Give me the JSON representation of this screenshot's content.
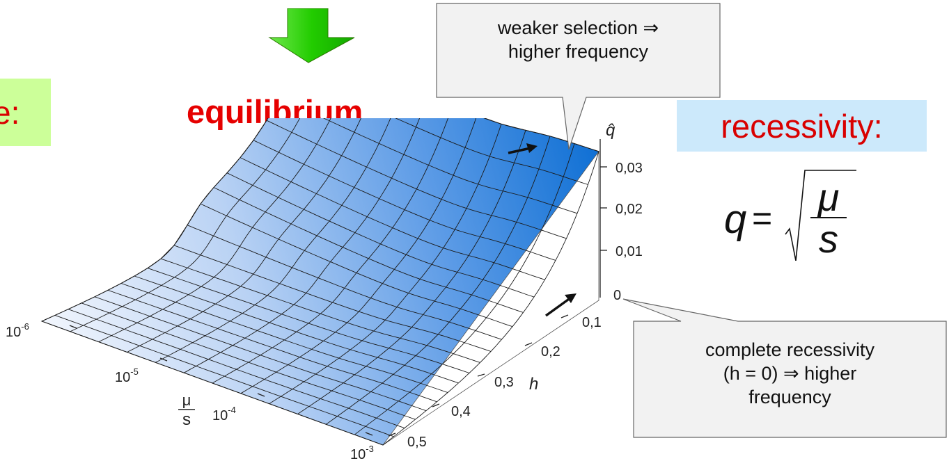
{
  "partial_label": "e:",
  "title": "equilibrium",
  "recessivity_label": "recessivity:",
  "formula": {
    "lhs": "q",
    "equals": "=",
    "numerator": "μ",
    "denominator": "s"
  },
  "callout_top": {
    "line1": "weaker selection ⇒",
    "line2": "higher frequency"
  },
  "callout_bottom": {
    "line1": "complete recessivity",
    "line2": "(h = 0) ⇒ higher",
    "line3": "frequency"
  },
  "axes": {
    "z_label": "q̂",
    "z_ticks": [
      "0,03",
      "0,02",
      "0,01",
      "0"
    ],
    "h_label": "h",
    "h_ticks": [
      "0,1",
      "0,2",
      "0,3",
      "0,4",
      "0,5"
    ],
    "mu_s_label": {
      "numerator": "μ",
      "denominator": "s"
    },
    "mu_s_ticks": [
      {
        "base": "10",
        "exp": "-6"
      },
      {
        "base": "10",
        "exp": "-5"
      },
      {
        "base": "10",
        "exp": "-4"
      },
      {
        "base": "10",
        "exp": "-3"
      }
    ]
  },
  "colors": {
    "surface_light": "#f2f6fd",
    "surface_dark": "#0e6fd4",
    "arrow_green": "#22cc00",
    "title_red": "#e60000"
  }
}
